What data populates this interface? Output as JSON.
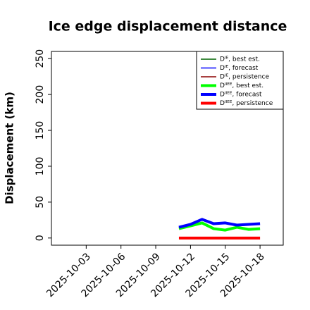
{
  "chart_data": {
    "type": "line",
    "title": "Ice edge displacement distance",
    "ylabel": "Displacement (km)",
    "x": [
      "2025-10-11",
      "2025-10-12",
      "2025-10-13",
      "2025-10-14",
      "2025-10-15",
      "2025-10-16",
      "2025-10-17",
      "2025-10-18"
    ],
    "xlim": [
      "2025-09-30",
      "2025-10-20"
    ],
    "xticks": [
      "2025-10-03",
      "2025-10-06",
      "2025-10-09",
      "2025-10-12",
      "2025-10-15",
      "2025-10-18"
    ],
    "xtick_colors": [
      "#000000",
      "#000000",
      "#228b22",
      "#000000",
      "#000000",
      "#000000"
    ],
    "ylim": [
      -10,
      260
    ],
    "yticks": [
      0,
      50,
      100,
      150,
      200,
      250
    ],
    "grid": false,
    "legend": "upper right",
    "series": [
      {
        "name": "Dᴵᴱ, best est.",
        "color": "#006400",
        "linewidth": 1.5,
        "values": [
          null,
          null,
          null,
          null,
          null,
          null,
          null,
          null
        ]
      },
      {
        "name": "Dᴵᴱ, forecast",
        "color": "#0000ff",
        "linewidth": 1.5,
        "values": [
          null,
          null,
          null,
          null,
          null,
          null,
          null,
          null
        ]
      },
      {
        "name": "Dᴵᴱ, persistence",
        "color": "#8b0000",
        "linewidth": 1.5,
        "values": [
          null,
          null,
          null,
          null,
          null,
          null,
          null,
          null
        ]
      },
      {
        "name": "Dᴵᴵᴱᴱ, best est.",
        "color": "#00ff00",
        "linewidth": 4,
        "values": [
          13,
          17,
          21,
          13,
          11,
          15,
          12,
          13
        ]
      },
      {
        "name": "Dᴵᴵᴱᴱ, forecast",
        "color": "#0000ff",
        "linewidth": 4,
        "values": [
          15,
          19,
          26,
          20,
          21,
          18,
          19,
          20
        ]
      },
      {
        "name": "Dᴵᴵᴱᴱ, persistence",
        "color": "#ff0000",
        "linewidth": 4,
        "values": [
          0,
          0,
          0,
          0,
          0,
          0,
          0,
          0
        ]
      }
    ]
  }
}
